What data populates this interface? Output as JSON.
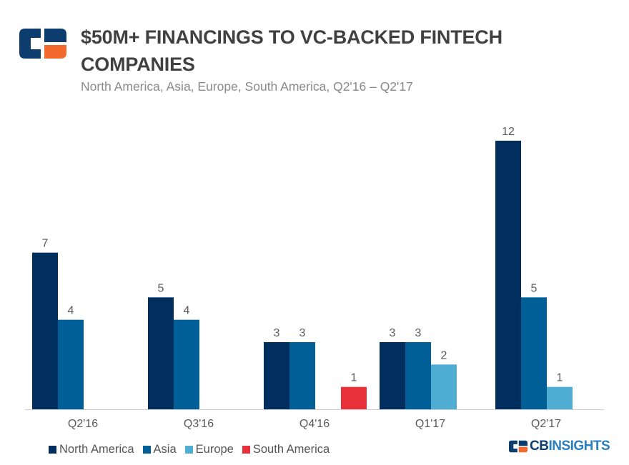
{
  "header": {
    "title": "$50M+ FINANCINGS TO VC-BACKED FINTECH COMPANIES",
    "subtitle": "North America, Asia, Europe, South America, Q2'16 – Q2'17"
  },
  "brand": {
    "cb": "CB",
    "insights": "INSIGHTS"
  },
  "colors": {
    "north_america": "#002f5f",
    "asia": "#005f96",
    "europe": "#4fadd4",
    "south_america": "#e8313a",
    "logo_dark": "#0c3d6e",
    "logo_accent": "#f26a2e"
  },
  "chart_data": {
    "type": "bar",
    "title": "$50M+ FINANCINGS TO VC-BACKED FINTECH COMPANIES",
    "subtitle": "North America, Asia, Europe, South America, Q2'16 – Q2'17",
    "categories": [
      "Q2'16",
      "Q3'16",
      "Q4'16",
      "Q1'17",
      "Q2'17"
    ],
    "series": [
      {
        "name": "North America",
        "color": "#002f5f",
        "values": [
          7,
          5,
          3,
          3,
          12
        ]
      },
      {
        "name": "Asia",
        "color": "#005f96",
        "values": [
          4,
          4,
          3,
          3,
          5
        ]
      },
      {
        "name": "Europe",
        "color": "#4fadd4",
        "values": [
          0,
          0,
          0,
          2,
          1
        ]
      },
      {
        "name": "South America",
        "color": "#e8313a",
        "values": [
          0,
          0,
          1,
          0,
          0
        ]
      }
    ],
    "ylim": [
      0,
      12
    ],
    "grid": false,
    "legend": "bottom-left",
    "data_labels": true
  }
}
